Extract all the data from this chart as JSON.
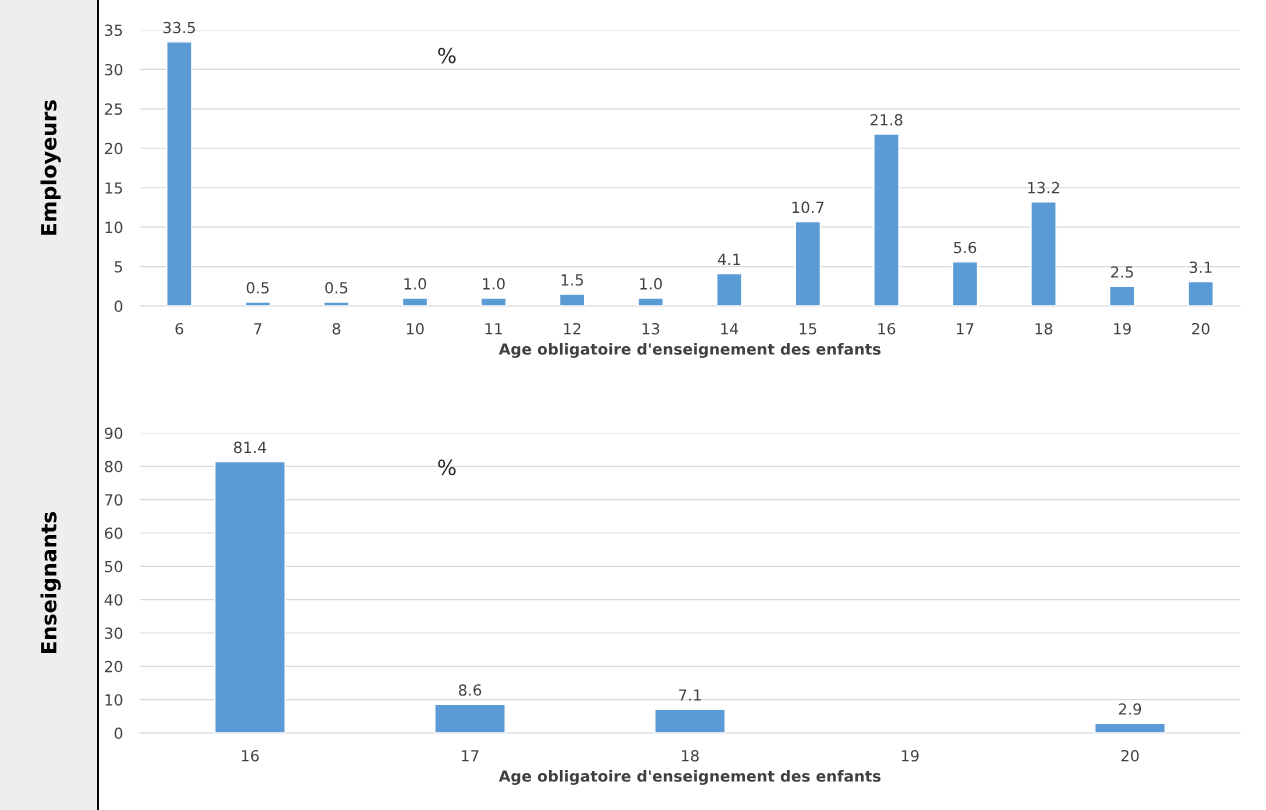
{
  "chart_data": [
    {
      "type": "bar",
      "ylabel": "Employeurs",
      "xlabel": "Age obligatoire d'enseignement des enfants",
      "categories": [
        "6",
        "7",
        "8",
        "10",
        "11",
        "12",
        "13",
        "14",
        "15",
        "16",
        "17",
        "18",
        "19",
        "20"
      ],
      "values": [
        33.5,
        0.5,
        0.5,
        1,
        1,
        1.5,
        1,
        4.1,
        10.7,
        21.8,
        5.6,
        13.2,
        2.5,
        3.1
      ],
      "value_labels": [
        "33.5",
        "0.5",
        "0.5",
        "1.0",
        "1.0",
        "1.5",
        "1.0",
        "4.1",
        "10.7",
        "21.8",
        "5.6",
        "13.2",
        "2.5",
        "3.1"
      ],
      "color": "#5b9bd5",
      "ylim": [
        0,
        35
      ],
      "yticks": [
        0,
        5,
        10,
        15,
        20,
        25,
        30,
        35
      ],
      "grid": "y",
      "annotations": [
        "%"
      ]
    },
    {
      "type": "bar",
      "ylabel": "Enseignants",
      "xlabel": "Age obligatoire d'enseignement des enfants",
      "categories": [
        "16",
        "17",
        "18",
        "19",
        "20"
      ],
      "values": [
        81.4,
        8.6,
        7.1,
        null,
        2.9
      ],
      "value_labels": [
        "81.4",
        "8.6",
        "7.1",
        null,
        "2.9"
      ],
      "color": "#5b9bd5",
      "ylim": [
        0,
        90
      ],
      "yticks": [
        0,
        10,
        20,
        30,
        40,
        50,
        60,
        70,
        80,
        90
      ],
      "grid": "y",
      "annotations": [
        "%"
      ]
    }
  ]
}
